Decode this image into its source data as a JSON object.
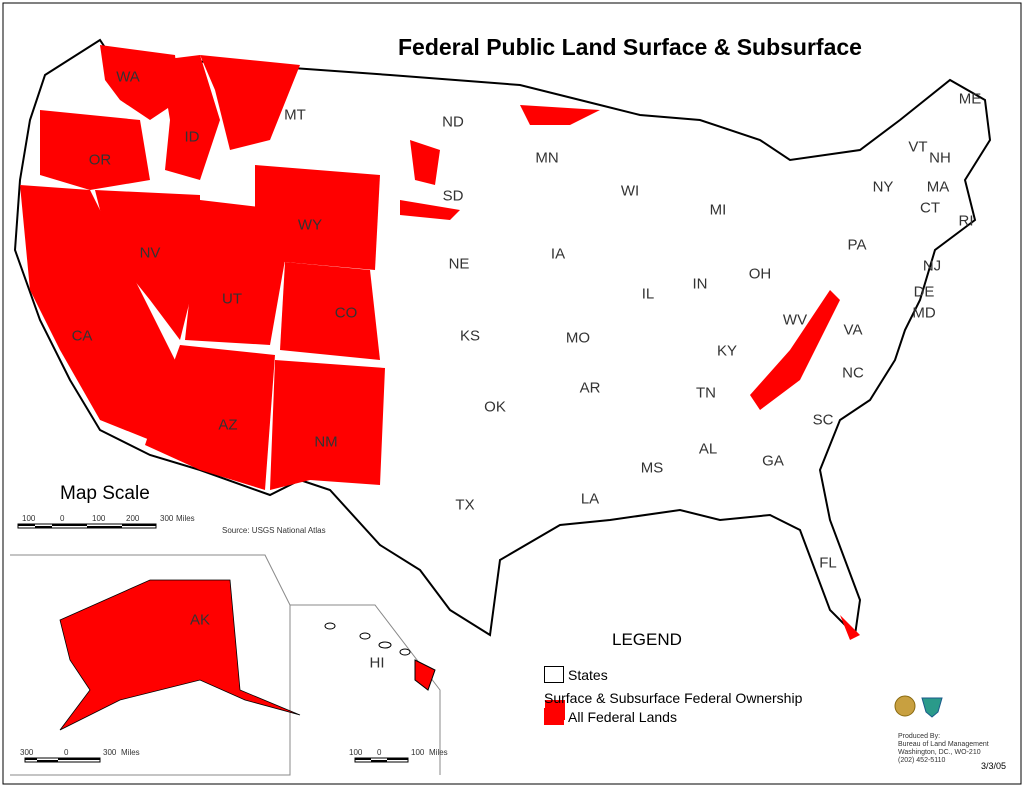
{
  "title": "Federal Public Land Surface & Subsurface",
  "colors": {
    "federal_land": "#ff0000",
    "state_border": "#000000",
    "background": "#ffffff"
  },
  "states": [
    "WA",
    "OR",
    "ID",
    "MT",
    "ND",
    "MN",
    "WI",
    "MI",
    "NY",
    "VT",
    "NH",
    "ME",
    "MA",
    "CT",
    "RI",
    "PA",
    "NJ",
    "DE",
    "MD",
    "OH",
    "IN",
    "IL",
    "IA",
    "NE",
    "SD",
    "WY",
    "NV",
    "UT",
    "CO",
    "CA",
    "KS",
    "MO",
    "KY",
    "WV",
    "VA",
    "NC",
    "TN",
    "AR",
    "OK",
    "AZ",
    "NM",
    "TX",
    "LA",
    "MS",
    "AL",
    "GA",
    "SC",
    "FL",
    "AK",
    "HI"
  ],
  "map_scale": {
    "title": "Map Scale",
    "ticks": [
      "100",
      "0",
      "100",
      "200",
      "300"
    ],
    "unit": "Miles",
    "source": "Source: USGS National Atlas"
  },
  "alaska_scale": {
    "ticks": [
      "300",
      "0",
      "300"
    ],
    "unit": "Miles"
  },
  "hawaii_scale": {
    "ticks": [
      "100",
      "0",
      "100"
    ],
    "unit": "Miles"
  },
  "legend": {
    "title": "LEGEND",
    "states_label": "States",
    "subtitle": "Surface & Subsurface Federal Ownership",
    "federal_label": "All Federal Lands"
  },
  "credits": [
    "Produced By:",
    "Bureau of Land Management",
    "Washington, DC., WO-210",
    "(202) 452-5110"
  ],
  "date": "3/3/05"
}
